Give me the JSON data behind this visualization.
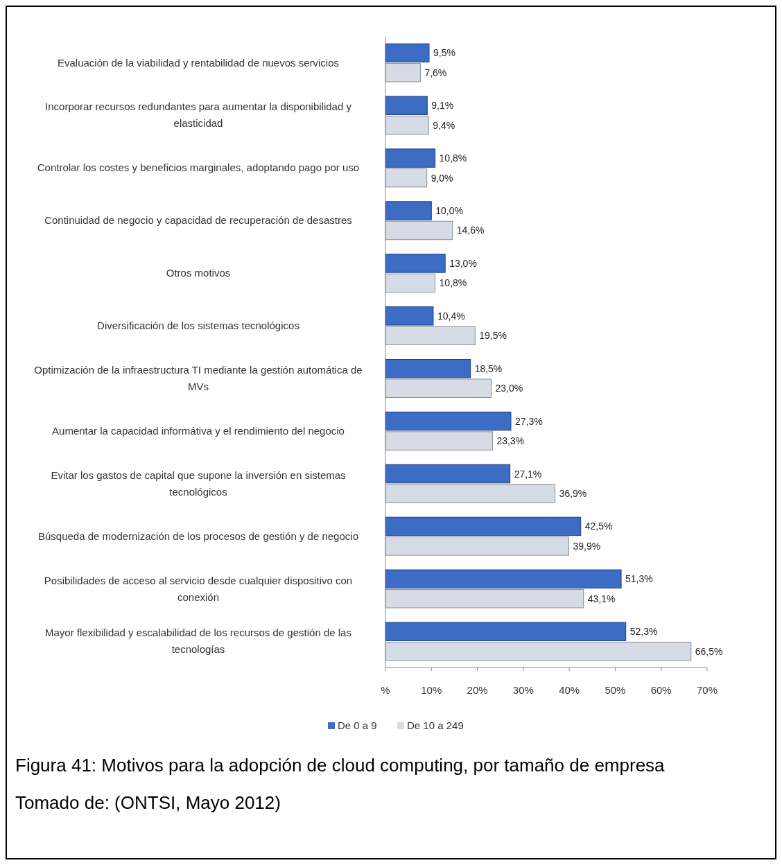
{
  "chart_data": {
    "type": "bar",
    "orientation": "horizontal",
    "categories": [
      "Evaluación de la viabilidad y rentabilidad de nuevos servicios",
      "Incorporar recursos redundantes para aumentar la disponibilidad y elasticidad",
      "Controlar los costes y beneficios marginales, adoptando pago por uso",
      "Continuidad de negocio y capacidad de recuperación de desastres",
      "Otros motivos",
      "Diversificación de los sistemas tecnológicos",
      "Optimización de la infraestructura TI mediante la gestión automática de MVs",
      "Aumentar la capacidad informátiva y el rendimiento del negocio",
      "Evitar los gastos de capital que supone la inversión en sistemas tecnológicos",
      "Búsqueda de modernización de los procesos de gestión y de negocio",
      "Posibilidades de acceso al servicio desde cualquier dispositivo con conexión",
      "Mayor flexibilidad y escalabilidad de los recursos de gestión de las tecnologías"
    ],
    "series": [
      {
        "name": "De 0 a 9",
        "color": "#3c6cc4",
        "values": [
          9.5,
          9.1,
          10.8,
          10.0,
          13.0,
          10.4,
          18.5,
          27.3,
          27.1,
          42.5,
          51.3,
          52.3
        ],
        "value_labels": [
          "9,5%",
          "9,1%",
          "10,8%",
          "10,0%",
          "13,0%",
          "10,4%",
          "18,5%",
          "27,3%",
          "27,1%",
          "42,5%",
          "51,3%",
          "52,3%"
        ]
      },
      {
        "name": "De 10 a 249",
        "color": "#d6dce5",
        "values": [
          7.6,
          9.4,
          9.0,
          14.6,
          10.8,
          19.5,
          23.0,
          23.3,
          36.9,
          39.9,
          43.1,
          66.5
        ],
        "value_labels": [
          "7,6%",
          "9,4%",
          "9,0%",
          "14,6%",
          "10,8%",
          "19,5%",
          "23,0%",
          "23,3%",
          "36,9%",
          "39,9%",
          "43,1%",
          "66,5%"
        ]
      }
    ],
    "xlim": [
      0,
      70
    ],
    "xticks": [
      {
        "value": 0,
        "label": "%"
      },
      {
        "value": 10,
        "label": "10%"
      },
      {
        "value": 20,
        "label": "20%"
      },
      {
        "value": 30,
        "label": "30%"
      },
      {
        "value": 40,
        "label": "40%"
      },
      {
        "value": 50,
        "label": "50%"
      },
      {
        "value": 60,
        "label": "60%"
      },
      {
        "value": 70,
        "label": "70%"
      }
    ],
    "legend": "bottom",
    "grid": false,
    "annotations": [
      "Figura 41: Motivos para la adopción de cloud computing, por tamaño de empresa",
      "Tomado de: (ONTSI, Mayo 2012)"
    ]
  }
}
